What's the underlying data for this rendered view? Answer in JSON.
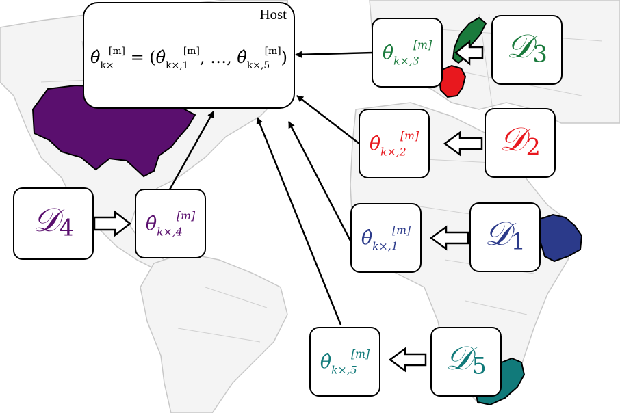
{
  "host": {
    "label": "Host",
    "equation": {
      "lhs": "θ̂",
      "lhs_sup": "[m]",
      "lhs_sub": "k×",
      "rhs_open": " = (",
      "first": "θ̂",
      "first_sup": "[m]",
      "first_sub": "k×,1",
      "ellipsis": ", …, ",
      "last": "θ̂",
      "last_sup": "[m]",
      "last_sub": "k×,5",
      "rhs_close": ")"
    }
  },
  "params": [
    {
      "symbol": "θ̂",
      "sup": "[m]",
      "sub": "k×,1",
      "color": "#2b3a8a"
    },
    {
      "symbol": "θ̂",
      "sup": "[m]",
      "sub": "k×,2",
      "color": "#e8181e"
    },
    {
      "symbol": "θ̂",
      "sup": "[m]",
      "sub": "k×,3",
      "color": "#1a7a3c"
    },
    {
      "symbol": "θ̂",
      "sup": "[m]",
      "sub": "k×,4",
      "color": "#5a0f6e"
    },
    {
      "symbol": "θ̂",
      "sup": "[m]",
      "sub": "k×,5",
      "color": "#117a7a"
    }
  ],
  "datasets": [
    {
      "letter": "𝒟",
      "index": "1",
      "color": "#2b3a8a"
    },
    {
      "letter": "𝒟",
      "index": "2",
      "color": "#e8181e"
    },
    {
      "letter": "𝒟",
      "index": "3",
      "color": "#1a7a3c"
    },
    {
      "letter": "𝒟",
      "index": "4",
      "color": "#5a0f6e"
    },
    {
      "letter": "𝒟",
      "index": "5",
      "color": "#117a7a"
    }
  ],
  "regions": {
    "usa": "#5a0f6e",
    "sweden": "#1a7a3c",
    "germany": "#e8181e",
    "ethiopia": "#2b3a8a",
    "south_africa": "#117a7a"
  }
}
